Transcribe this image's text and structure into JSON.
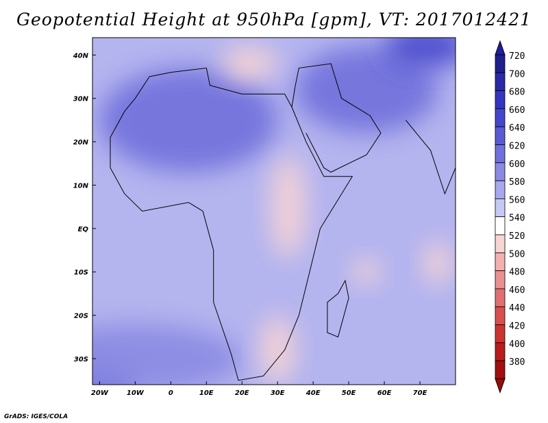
{
  "title": "Geopotential Height at 950hPa [gpm], VT: 2017012421",
  "credit": "GrADS: IGES/COLA",
  "map": {
    "extent": {
      "lon": [
        -22,
        80
      ],
      "lat": [
        -36,
        44
      ]
    },
    "lat_ticks": [
      {
        "label": "40N",
        "lat": 40
      },
      {
        "label": "30N",
        "lat": 30
      },
      {
        "label": "20N",
        "lat": 20
      },
      {
        "label": "10N",
        "lat": 10
      },
      {
        "label": "EQ",
        "lat": 0
      },
      {
        "label": "10S",
        "lat": -10
      },
      {
        "label": "20S",
        "lat": -20
      },
      {
        "label": "30S",
        "lat": -30
      }
    ],
    "lon_ticks": [
      {
        "label": "20W",
        "lon": -20
      },
      {
        "label": "10W",
        "lon": -10
      },
      {
        "label": "0",
        "lon": 0
      },
      {
        "label": "10E",
        "lon": 10
      },
      {
        "label": "20E",
        "lon": 20
      },
      {
        "label": "30E",
        "lon": 30
      },
      {
        "label": "40E",
        "lon": 40
      },
      {
        "label": "50E",
        "lon": 50
      },
      {
        "label": "60E",
        "lon": 60
      },
      {
        "label": "70E",
        "lon": 70
      }
    ],
    "regions": [
      {
        "name": "sw-corner-low",
        "value": 640,
        "lon": -20,
        "lat": -35,
        "rlon": 10,
        "rlat": 5
      },
      {
        "name": "south-atlantic-band",
        "value": 600,
        "lon": -10,
        "lat": -30,
        "rlon": 30,
        "rlat": 8
      },
      {
        "name": "north-africa-high",
        "value": 620,
        "lon": 5,
        "lat": 25,
        "rlon": 25,
        "rlat": 12
      },
      {
        "name": "arabia-high",
        "value": 620,
        "lon": 55,
        "lat": 32,
        "rlon": 20,
        "rlat": 10
      },
      {
        "name": "central-asia-high",
        "value": 660,
        "lon": 72,
        "lat": 42,
        "rlon": 12,
        "rlat": 5
      },
      {
        "name": "east-africa-low",
        "value": 520,
        "lon": 33,
        "lat": 5,
        "rlon": 5,
        "rlat": 12
      },
      {
        "name": "southern-africa-low",
        "value": 510,
        "lon": 30,
        "lat": -28,
        "rlon": 5,
        "rlat": 8
      },
      {
        "name": "mediterranean-low",
        "value": 520,
        "lon": 22,
        "lat": 38,
        "rlon": 8,
        "rlat": 4
      },
      {
        "name": "indian-ocean-low",
        "value": 520,
        "lon": 55,
        "lat": -10,
        "rlon": 4,
        "rlat": 3
      },
      {
        "name": "far-east-low",
        "value": 520,
        "lon": 75,
        "lat": -8,
        "rlon": 4,
        "rlat": 5
      }
    ],
    "coastline": [
      {
        "lon": -17,
        "lat": 21
      },
      {
        "lon": -13,
        "lat": 27
      },
      {
        "lon": -10,
        "lat": 30
      },
      {
        "lon": -6,
        "lat": 35
      },
      {
        "lon": 0,
        "lat": 36
      },
      {
        "lon": 10,
        "lat": 37
      },
      {
        "lon": 11,
        "lat": 33
      },
      {
        "lon": 20,
        "lat": 31
      },
      {
        "lon": 32,
        "lat": 31
      },
      {
        "lon": 34,
        "lat": 28
      },
      {
        "lon": 38,
        "lat": 20
      },
      {
        "lon": 43,
        "lat": 12
      },
      {
        "lon": 51,
        "lat": 12
      },
      {
        "lon": 42,
        "lat": 0
      },
      {
        "lon": 39,
        "lat": -10
      },
      {
        "lon": 36,
        "lat": -20
      },
      {
        "lon": 32,
        "lat": -28
      },
      {
        "lon": 26,
        "lat": -34
      },
      {
        "lon": 19,
        "lat": -35
      },
      {
        "lon": 17,
        "lat": -29
      },
      {
        "lon": 12,
        "lat": -17
      },
      {
        "lon": 12,
        "lat": -5
      },
      {
        "lon": 9,
        "lat": 4
      },
      {
        "lon": 5,
        "lat": 6
      },
      {
        "lon": -8,
        "lat": 4
      },
      {
        "lon": -13,
        "lat": 8
      },
      {
        "lon": -17,
        "lat": 14
      },
      {
        "lon": -17,
        "lat": 21
      }
    ],
    "arabia": [
      {
        "lon": 34,
        "lat": 28
      },
      {
        "lon": 35,
        "lat": 33
      },
      {
        "lon": 36,
        "lat": 37
      },
      {
        "lon": 45,
        "lat": 38
      },
      {
        "lon": 48,
        "lat": 30
      },
      {
        "lon": 56,
        "lat": 26
      },
      {
        "lon": 59,
        "lat": 22
      },
      {
        "lon": 55,
        "lat": 17
      },
      {
        "lon": 45,
        "lat": 13
      },
      {
        "lon": 43,
        "lat": 14
      },
      {
        "lon": 38,
        "lat": 22
      }
    ],
    "madagascar": [
      {
        "lon": 49,
        "lat": -12
      },
      {
        "lon": 50,
        "lat": -16
      },
      {
        "lon": 47,
        "lat": -25
      },
      {
        "lon": 44,
        "lat": -24
      },
      {
        "lon": 44,
        "lat": -17
      },
      {
        "lon": 47,
        "lat": -15
      },
      {
        "lon": 49,
        "lat": -12
      }
    ],
    "india": [
      {
        "lon": 66,
        "lat": 25
      },
      {
        "lon": 70,
        "lat": 21
      },
      {
        "lon": 73,
        "lat": 18
      },
      {
        "lon": 77,
        "lat": 8
      },
      {
        "lon": 80,
        "lat": 14
      }
    ]
  },
  "colorbar": {
    "levels": [
      "720",
      "700",
      "680",
      "660",
      "640",
      "620",
      "600",
      "580",
      "560",
      "540",
      "520",
      "500",
      "480",
      "460",
      "440",
      "420",
      "400",
      "380"
    ],
    "colors": [
      "#1f1f8f",
      "#2a2aa6",
      "#3535bf",
      "#4646cc",
      "#5a5ad4",
      "#7070dc",
      "#8a8ae3",
      "#a8a8ec",
      "#c8c8f4",
      "#ffffff",
      "#f8d4d4",
      "#f2b0b0",
      "#ea9090",
      "#e07070",
      "#d85050",
      "#cc3434",
      "#b81c1c",
      "#a01010"
    ],
    "top_color": "#1f1fa0",
    "bottom_color": "#9a0c0c"
  }
}
